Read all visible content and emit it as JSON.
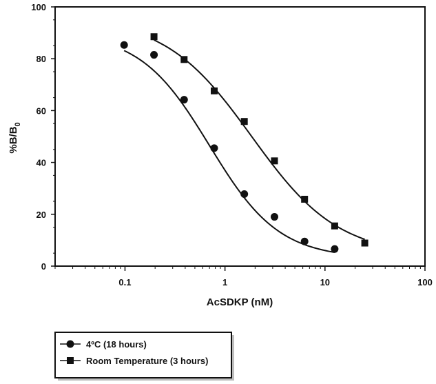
{
  "chart_data": {
    "type": "scatter",
    "xlabel": "AcSDKP (nM)",
    "ylabel": "%B/B",
    "ylabel_subscript": "0",
    "x_scale": "log",
    "xlim": [
      0.02,
      100
    ],
    "ylim": [
      0,
      100
    ],
    "x_ticks": [
      {
        "value": 0.1,
        "label": "0.1"
      },
      {
        "value": 1,
        "label": "1"
      },
      {
        "value": 10,
        "label": "10"
      },
      {
        "value": 100,
        "label": "100"
      }
    ],
    "y_ticks": [
      {
        "value": 0,
        "label": "0"
      },
      {
        "value": 20,
        "label": "20"
      },
      {
        "value": 40,
        "label": "40"
      },
      {
        "value": 60,
        "label": "60"
      },
      {
        "value": 80,
        "label": "80"
      },
      {
        "value": 100,
        "label": "100"
      }
    ],
    "grid": false,
    "legend_position": "bottom-left, below plot",
    "series": [
      {
        "name": "4ºC (18 hours)",
        "marker": "circle",
        "x": [
          0.098,
          0.195,
          0.39,
          0.78,
          1.56,
          3.125,
          6.25,
          12.5
        ],
        "y": [
          85.3,
          81.5,
          64.2,
          45.5,
          27.8,
          19.0,
          9.5,
          6.6
        ],
        "fit_curve": {
          "top": 90,
          "bottom": 3,
          "ec50": 0.7,
          "hill": 1.25,
          "x_range": [
            0.098,
            12.5
          ]
        }
      },
      {
        "name": "Room Temperature (3 hours)",
        "marker": "square",
        "x": [
          0.195,
          0.39,
          0.78,
          1.56,
          3.125,
          6.25,
          12.5,
          25
        ],
        "y": [
          88.5,
          79.7,
          67.6,
          55.8,
          40.6,
          25.8,
          15.5,
          8.9
        ],
        "fit_curve": {
          "top": 96,
          "bottom": 4,
          "ec50": 1.85,
          "hill": 1.0,
          "x_range": [
            0.195,
            25
          ]
        }
      }
    ]
  }
}
